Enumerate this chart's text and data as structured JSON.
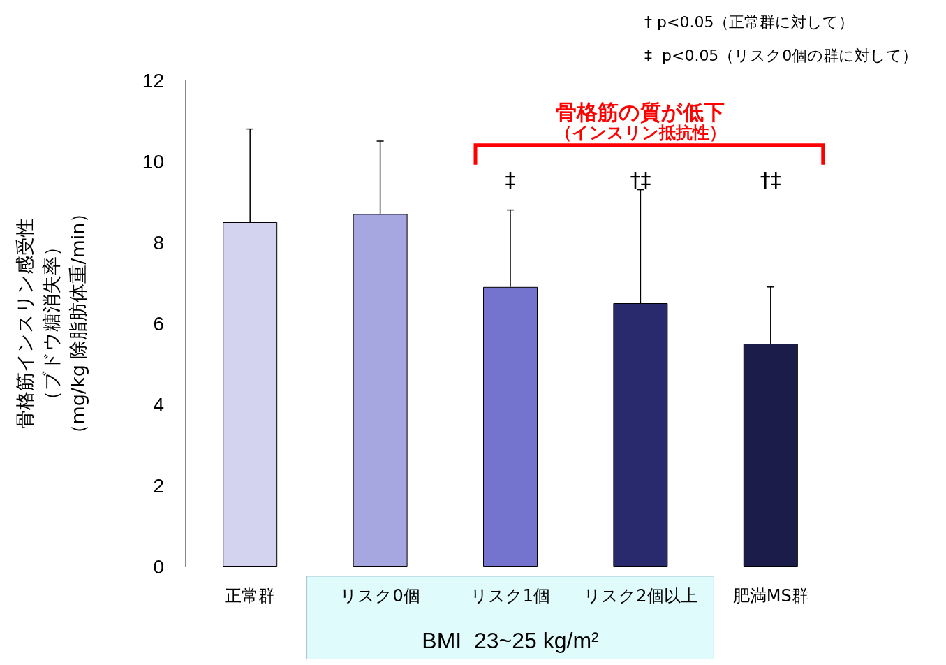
{
  "chart_data": {
    "type": "bar",
    "ylabel": "骨格筋インスリン感受性（ブドウ糖消失率）（mg/kg 除脂肪体重/min）",
    "categories": [
      "正常群",
      "リスク0個",
      "リスク1個",
      "リスク2個以上",
      "肥満MS群"
    ],
    "values": [
      8.5,
      8.7,
      6.9,
      6.5,
      5.5
    ],
    "errors": [
      [
        8.5,
        10.8
      ],
      [
        8.7,
        10.5
      ],
      [
        6.9,
        8.8
      ],
      [
        6.5,
        9.3
      ],
      [
        5.5,
        6.9
      ]
    ],
    "colors": [
      "#d3d3f0",
      "#a6a6e0",
      "#7474cf",
      "#29296e",
      "#1c1c4a"
    ],
    "ylim": [
      0,
      12
    ],
    "yticks": [
      0,
      2,
      4,
      6,
      8,
      10,
      12
    ],
    "grid": false,
    "annotations": [
      "† p<0.05（正常群に対して）",
      "‡  p<0.05（リスク0個の群に対して）",
      "骨格筋の質が低下",
      "（インスリン抵抗性）",
      "BMI  23~25 kg/m²",
      "‡",
      "†‡",
      "†‡"
    ]
  }
}
